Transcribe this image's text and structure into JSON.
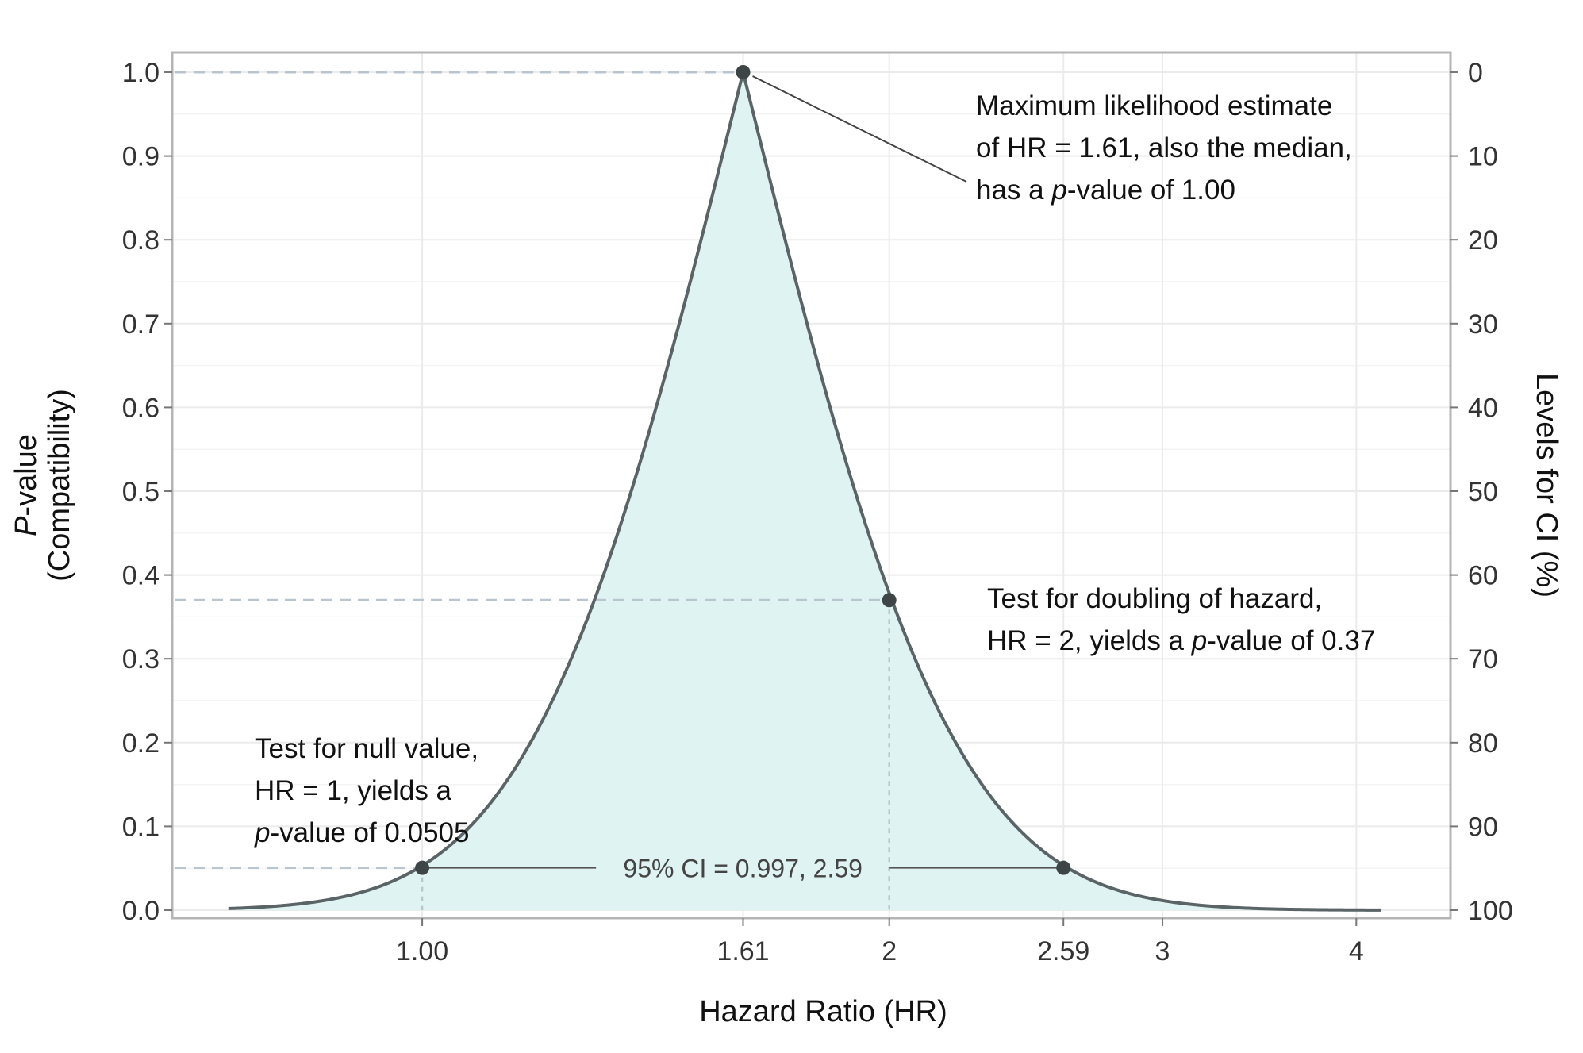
{
  "chart_data": {
    "type": "line",
    "xlabel": "Hazard Ratio (HR)",
    "ylabel": {
      "italic_prefix": "P",
      "rest": "-value",
      "line2": "(Compatibility)"
    },
    "ylabel_right": "Levels for CI (%)",
    "x_scale": "log",
    "xlim": [
      0.69,
      4.6
    ],
    "ylim": [
      0,
      1.0
    ],
    "x_ticks": [
      {
        "value": 1.0,
        "label": "1.00"
      },
      {
        "value": 1.61,
        "label": "1.61"
      },
      {
        "value": 2,
        "label": "2"
      },
      {
        "value": 2.59,
        "label": "2.59"
      },
      {
        "value": 3,
        "label": "3"
      },
      {
        "value": 4,
        "label": "4"
      }
    ],
    "y_ticks": [
      {
        "value": 0.0,
        "label": "0.0"
      },
      {
        "value": 0.1,
        "label": "0.1"
      },
      {
        "value": 0.2,
        "label": "0.2"
      },
      {
        "value": 0.3,
        "label": "0.3"
      },
      {
        "value": 0.4,
        "label": "0.4"
      },
      {
        "value": 0.5,
        "label": "0.5"
      },
      {
        "value": 0.6,
        "label": "0.6"
      },
      {
        "value": 0.7,
        "label": "0.7"
      },
      {
        "value": 0.8,
        "label": "0.8"
      },
      {
        "value": 0.9,
        "label": "0.9"
      },
      {
        "value": 1.0,
        "label": "1.0"
      }
    ],
    "y2_ticks": [
      {
        "value": 1.0,
        "label": "0"
      },
      {
        "value": 0.9,
        "label": "10"
      },
      {
        "value": 0.8,
        "label": "20"
      },
      {
        "value": 0.7,
        "label": "30"
      },
      {
        "value": 0.6,
        "label": "40"
      },
      {
        "value": 0.5,
        "label": "50"
      },
      {
        "value": 0.4,
        "label": "60"
      },
      {
        "value": 0.3,
        "label": "70"
      },
      {
        "value": 0.2,
        "label": "80"
      },
      {
        "value": 0.1,
        "label": "90"
      },
      {
        "value": 0.0,
        "label": "100"
      }
    ],
    "curve": {
      "estimate": 1.61,
      "se_log": 0.2462,
      "x_range": [
        0.75,
        4.15
      ]
    },
    "points": [
      {
        "x": 1.0,
        "y": 0.0505
      },
      {
        "x": 1.61,
        "y": 1.0
      },
      {
        "x": 2,
        "y": 0.37
      },
      {
        "x": 2.59,
        "y": 0.0505
      }
    ],
    "grid": true,
    "colors": {
      "fill": "#dff4f2",
      "curve": "#5a6366",
      "point": "#3d4547",
      "ref_line": "#b9c6cf",
      "grid": "#ebebeb",
      "frame": "#b5b5b5"
    },
    "ci_label": "95% CI = 0.997, 2.59",
    "annotations": {
      "mle": {
        "line1": "Maximum likelihood estimate",
        "line2": "of HR = 1.61, also the median,",
        "line3_pre": "has a ",
        "line3_it": "p",
        "line3_post": "-value of 1.00"
      },
      "doubling": {
        "line1": "Test for doubling of hazard,",
        "line2_pre": "HR = 2, yields a ",
        "line2_it": "p",
        "line2_post": "-value of 0.37"
      },
      "null": {
        "line1": "Test for null value,",
        "line2": "HR = 1, yields a",
        "line3_it": "p",
        "line3_post": "-value of 0.0505"
      }
    }
  }
}
